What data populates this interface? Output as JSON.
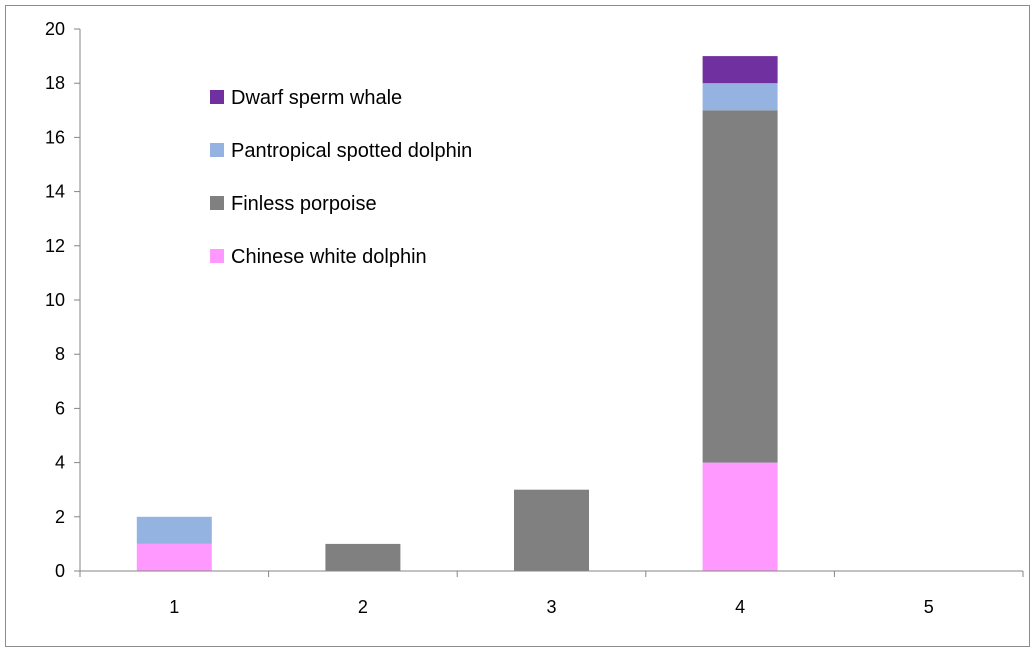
{
  "chart_data": {
    "type": "bar",
    "stacked": true,
    "categories": [
      "1",
      "2",
      "3",
      "4",
      "5"
    ],
    "series": [
      {
        "name": "Chinese white dolphin",
        "color": "#ff99ff",
        "values": [
          1,
          0,
          0,
          4,
          0
        ]
      },
      {
        "name": "Finless porpoise",
        "color": "#808080",
        "values": [
          0,
          1,
          3,
          13,
          0
        ]
      },
      {
        "name": "Pantropical spotted dolphin",
        "color": "#95b3e1",
        "values": [
          1,
          0,
          0,
          1,
          0
        ]
      },
      {
        "name": "Dwarf sperm whale",
        "color": "#7030a0",
        "values": [
          0,
          0,
          0,
          1,
          0
        ]
      }
    ],
    "title": "",
    "xlabel": "",
    "ylabel": "",
    "ylim": [
      0,
      20
    ],
    "yticks": [
      "0",
      "2",
      "4",
      "6",
      "8",
      "10",
      "12",
      "14",
      "16",
      "18",
      "20"
    ],
    "grid": false,
    "legend_order": [
      "Dwarf sperm whale",
      "Pantropical spotted dolphin",
      "Finless porpoise",
      "Chinese white dolphin"
    ],
    "legend_position": "upper-left inside plot"
  }
}
